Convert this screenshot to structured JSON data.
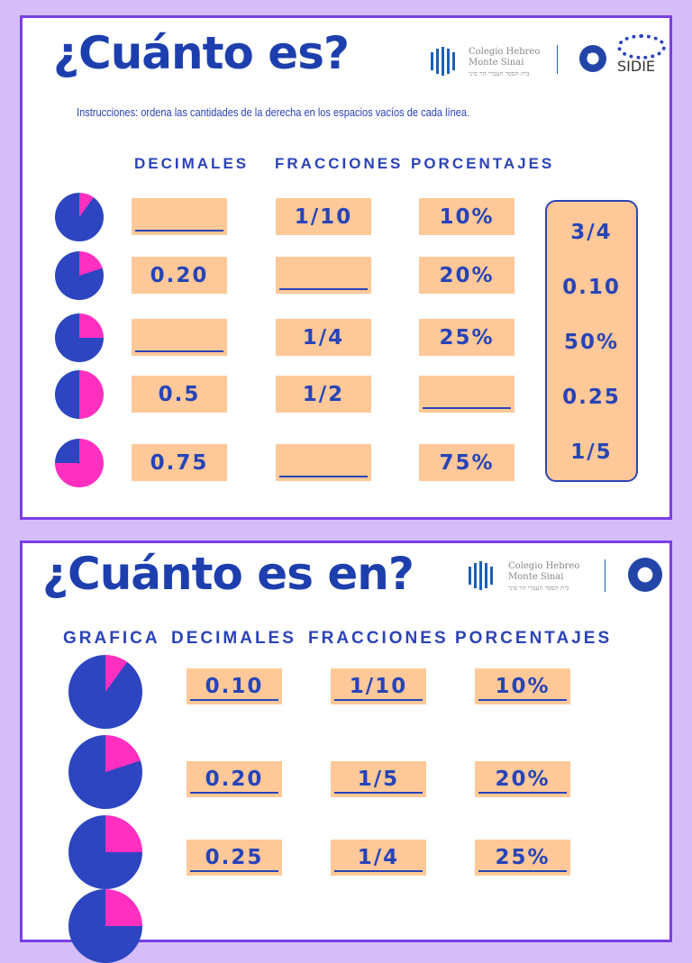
{
  "colors": {
    "blue": "#2d45c0",
    "pink": "#ff2fc0",
    "peach": "#ffc898",
    "frame": "#7a3fe6"
  },
  "school": {
    "name1": "Colegio Hebreo",
    "name2": "Monte Sinai",
    "hebrew": "בית הספר העברי הר סיני",
    "ib": "ib",
    "sidie": "SIDIE"
  },
  "sheet1": {
    "title": "¿Cuánto es?",
    "instructions": "Instrucciones: ordena las cantidades de la derecha en los espacios vacíos de cada línea.",
    "headers": [
      "DECIMALES",
      "FRACCIONES",
      "PORCENTAJES"
    ],
    "rows": [
      {
        "pie_fraction": 0.1,
        "decimal": "",
        "fraction": "1/10",
        "percent": "10%"
      },
      {
        "pie_fraction": 0.2,
        "decimal": "0.20",
        "fraction": "",
        "percent": "20%"
      },
      {
        "pie_fraction": 0.25,
        "decimal": "",
        "fraction": "1/4",
        "percent": "25%"
      },
      {
        "pie_fraction": 0.5,
        "decimal": "0.5",
        "fraction": "1/2",
        "percent": ""
      },
      {
        "pie_fraction": 0.75,
        "decimal": "0.75",
        "fraction": "",
        "percent": "75%"
      }
    ],
    "answers": [
      "3/4",
      "0.10",
      "50%",
      "0.25",
      "1/5"
    ]
  },
  "sheet2": {
    "title": "¿Cuánto es en?",
    "headers": [
      "GRAFICA",
      "DECIMALES",
      "FRACCIONES",
      "PORCENTAJES"
    ],
    "rows": [
      {
        "pie_fraction": 0.1,
        "decimal": "0.10",
        "fraction": "1/10",
        "percent": "10%"
      },
      {
        "pie_fraction": 0.2,
        "decimal": "0.20",
        "fraction": "1/5",
        "percent": "20%"
      },
      {
        "pie_fraction": 0.25,
        "decimal": "0.25",
        "fraction": "1/4",
        "percent": "25%"
      },
      {
        "pie_fraction": 0.25
      }
    ]
  }
}
